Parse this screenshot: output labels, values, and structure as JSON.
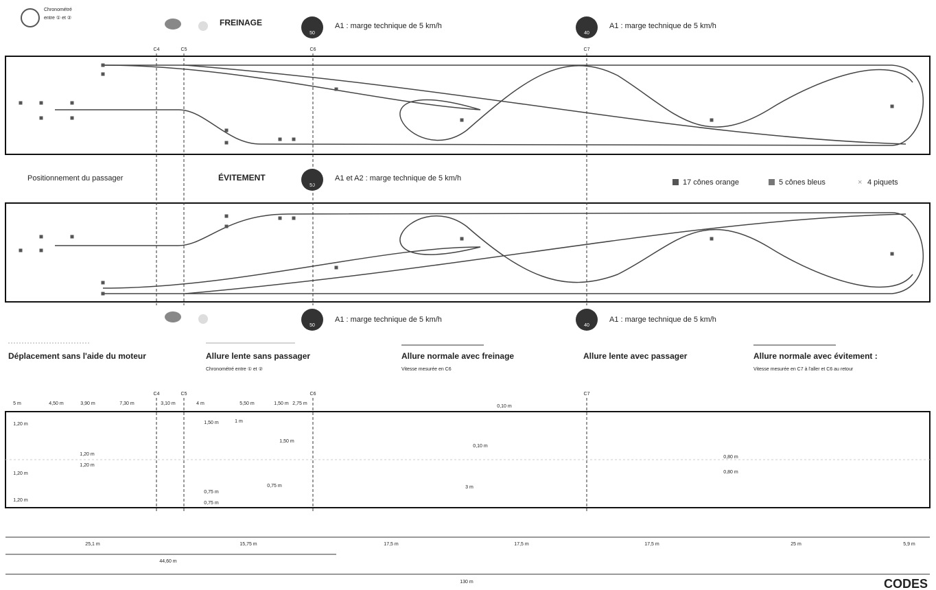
{
  "top": {
    "chrono": "Chronométré",
    "chrono_sub": "entre ① et ②",
    "freinage": "FREINAGE",
    "speed_a": "50",
    "margin_a": "A1 : marge technique de 5 km/h",
    "speed_b": "40",
    "margin_b": "A1 : marge technique de 5 km/h"
  },
  "markers": [
    "C4",
    "C5",
    "C6",
    "C7"
  ],
  "middle": {
    "passager": "Positionnement du passager",
    "evitement": "ÉVITEMENT",
    "speed": "50",
    "margin": "A1 et A2 : marge technique de 5 km/h",
    "legend": [
      "17 cônes orange",
      "5 cônes bleus",
      "4 piquets"
    ]
  },
  "bottom": {
    "speed_a": "50",
    "margin_a": "A1 : marge technique de 5 km/h",
    "speed_b": "40",
    "margin_b": "A1 : marge technique de 5 km/h"
  },
  "key": [
    {
      "title": "Déplacement sans l'aide du moteur"
    },
    {
      "title": "Allure lente sans passager",
      "note": "Chronométré entre ① et ②"
    },
    {
      "title": "Allure normale avec freinage",
      "note": "Vitesse mesurée en C6"
    },
    {
      "title": "Allure lente avec passager"
    },
    {
      "title": "Allure normale avec évitement :",
      "note": "Vitesse mesurée en C7 à l'aller et C6 au retour"
    }
  ],
  "dims": {
    "top": [
      "5 m",
      "4,50 m",
      "3,90 m",
      "7,30 m",
      "3,10 m",
      "4 m",
      "5,50 m",
      "1,50 m",
      "2,75 m"
    ],
    "inner": [
      "1,20 m",
      "1,20 m",
      "1,20 m",
      "1,20 m",
      "1,20 m",
      "1,50 m",
      "1 m",
      "1,50 m",
      "0,75 m",
      "0,75 m",
      "0,75 m",
      "0,10 m",
      "0,10 m",
      "3 m",
      "0,80 m",
      "0,80 m"
    ],
    "bottom": [
      "25,1 m",
      "15,75 m",
      "17,5 m",
      "17,5 m",
      "17,5 m",
      "25 m",
      "5,9 m"
    ],
    "total_a": "44,60 m",
    "total": "130 m"
  },
  "logo": "CODES"
}
